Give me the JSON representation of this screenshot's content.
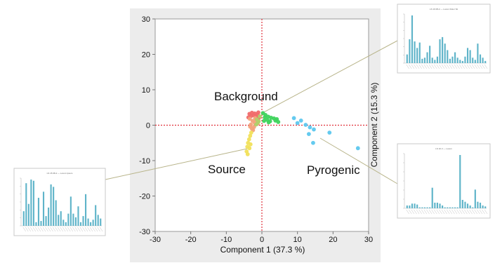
{
  "chart_data": {
    "type": "scatter",
    "title": "",
    "xlabel": "Component 1  (37.3 %)",
    "ylabel": "Component 2  (15.3 %)",
    "xlim": [
      -30,
      30
    ],
    "ylim": [
      -30,
      30
    ],
    "xticks": [
      -30,
      -20,
      -10,
      0,
      10,
      20,
      30
    ],
    "yticks": [
      30,
      20,
      10,
      0,
      -10,
      -20,
      -30
    ],
    "grid": false,
    "reference_lines": {
      "x": 0,
      "y": 0,
      "color": "#e0303a",
      "style": "dotted"
    },
    "annotations": [
      "Background",
      "Source",
      "Pyrogenic"
    ],
    "series": [
      {
        "color": "#f06a6a",
        "points": [
          [
            -3.5,
            3.2
          ],
          [
            -2.8,
            3.5
          ],
          [
            -2.0,
            3.3
          ],
          [
            -1.2,
            3.0
          ],
          [
            -3.0,
            2.6
          ],
          [
            -1.6,
            2.4
          ],
          [
            -0.8,
            2.1
          ],
          [
            -2.3,
            2.8
          ],
          [
            -3.8,
            2.2
          ],
          [
            -1.0,
            3.6
          ]
        ]
      },
      {
        "color": "#3ed35c",
        "points": [
          [
            0.3,
            3.4
          ],
          [
            1.0,
            2.9
          ],
          [
            1.8,
            2.4
          ],
          [
            2.6,
            2.1
          ],
          [
            3.4,
            1.9
          ],
          [
            4.2,
            1.7
          ],
          [
            1.5,
            1.5
          ],
          [
            0.6,
            1.2
          ],
          [
            2.3,
            1.1
          ],
          [
            3.8,
            1.3
          ],
          [
            0.8,
            2.2
          ],
          [
            4.6,
            0.9
          ],
          [
            1.9,
            0.8
          ]
        ]
      },
      {
        "color": "#f3a27b",
        "points": [
          [
            -3.4,
            1.8
          ],
          [
            -2.6,
            1.2
          ],
          [
            -2.0,
            0.6
          ],
          [
            -3.1,
            0.2
          ],
          [
            -2.2,
            -0.5
          ],
          [
            -2.8,
            -1.0
          ],
          [
            -1.6,
            1.5
          ],
          [
            -1.2,
            0.4
          ],
          [
            -3.3,
            -0.4
          ],
          [
            -2.5,
            -1.4
          ],
          [
            -1.9,
            2.0
          ]
        ]
      },
      {
        "color": "#b0d06a",
        "points": [
          [
            -1.4,
            1.6
          ],
          [
            -1.1,
            0.8
          ],
          [
            -0.6,
            2.5
          ],
          [
            -0.9,
            1.1
          ],
          [
            -1.6,
            0.2
          ]
        ]
      },
      {
        "color": "#f1e05a",
        "points": [
          [
            -3.0,
            -2.1
          ],
          [
            -3.3,
            -3.0
          ],
          [
            -3.6,
            -4.0
          ],
          [
            -3.9,
            -5.0
          ],
          [
            -4.1,
            -6.1
          ],
          [
            -4.3,
            -7.4
          ],
          [
            -4.0,
            -8.2
          ],
          [
            -3.5,
            -6.5
          ],
          [
            -3.2,
            -5.4
          ]
        ]
      },
      {
        "color": "#5cc7ee",
        "points": [
          [
            9.0,
            2.0
          ],
          [
            11.0,
            1.3
          ],
          [
            10.0,
            0.6
          ],
          [
            12.3,
            0.1
          ],
          [
            13.5,
            -0.6
          ],
          [
            14.6,
            -1.2
          ],
          [
            13.2,
            -2.5
          ],
          [
            19.0,
            -2.1
          ],
          [
            14.4,
            -5.0
          ],
          [
            27.0,
            -6.5
          ]
        ]
      }
    ]
  },
  "insets": [
    {
      "title": "LS 15 08-2 — Lorem Ipsum",
      "values": [
        1.2,
        3.5,
        1.8,
        3.8,
        3.7,
        0.3,
        2.3,
        0.4,
        2.8,
        0.8,
        1.5,
        3.4,
        3.2,
        2.1,
        0.9,
        1.2,
        0.5,
        0.3,
        1.0,
        2.4,
        1.0,
        0.7,
        1.6,
        0.3,
        0.8,
        2.6,
        0.6,
        0.3,
        0.5,
        1.7,
        0.9,
        0.6
      ]
    },
    {
      "title": "LS 19 08-2 — Lorem Dolor Sit",
      "values": [
        0.8,
        2.2,
        4.4,
        2.0,
        1.4,
        1.9,
        0.4,
        0.5,
        1.0,
        1.6,
        0.5,
        0.3,
        0.6,
        2.2,
        2.4,
        1.8,
        1.2,
        0.4,
        0.6,
        1.0,
        0.5,
        0.3,
        0.2,
        0.6,
        1.4,
        1.2,
        0.5,
        0.3,
        1.8,
        0.8,
        0.5,
        0.2
      ]
    },
    {
      "title": "LS 10 2 — Lorem",
      "values": [
        0.3,
        0.3,
        0.5,
        0.5,
        0.4,
        0.1,
        0.1,
        0.1,
        0.1,
        0.1,
        2.2,
        0.6,
        0.6,
        0.5,
        0.3,
        0.1,
        0.1,
        0.1,
        0.1,
        0.1,
        0.1,
        5.7,
        0.9,
        0.7,
        0.5,
        0.3,
        0.1,
        2.0,
        0.7,
        0.6,
        0.3,
        0.2
      ]
    }
  ],
  "colors": {
    "bar": "#5fb4c9",
    "connector": "#b8b48a",
    "plot_frame": "#9a9a9a",
    "outer_panel": "#ececec"
  }
}
